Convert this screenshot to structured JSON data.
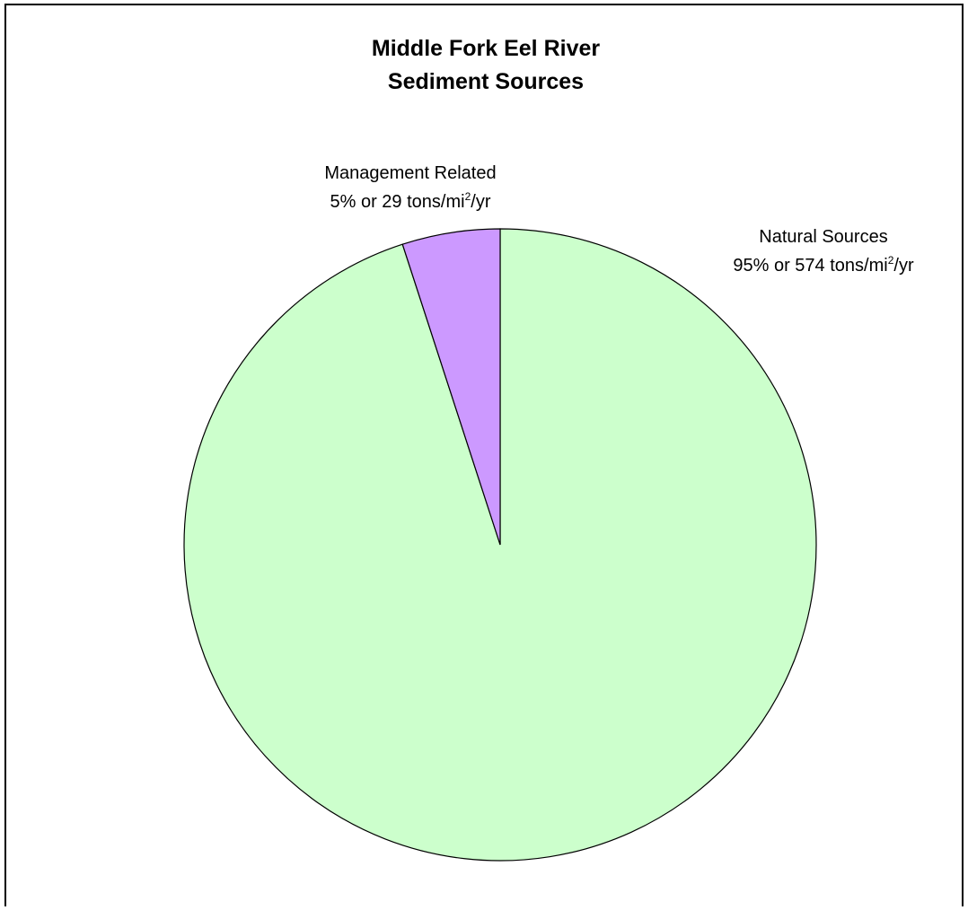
{
  "chart_data": {
    "type": "pie",
    "title": [
      "Middle Fork Eel River",
      "Sediment Sources"
    ],
    "slices": [
      {
        "name": "Natural Sources",
        "percent": 95,
        "value": 574,
        "unit": "tons/mi²/yr",
        "label_line2_pre": "95% or 574 tons/mi",
        "label_sup": "2",
        "label_line2_post": "/yr",
        "color": "#ccffcc"
      },
      {
        "name": "Management Related",
        "percent": 5,
        "value": 29,
        "unit": "tons/mi²/yr",
        "label_line2_pre": "5% or 29 tons/mi",
        "label_sup": "2",
        "label_line2_post": "/yr",
        "color": "#cc99ff"
      }
    ],
    "legend": "none"
  }
}
